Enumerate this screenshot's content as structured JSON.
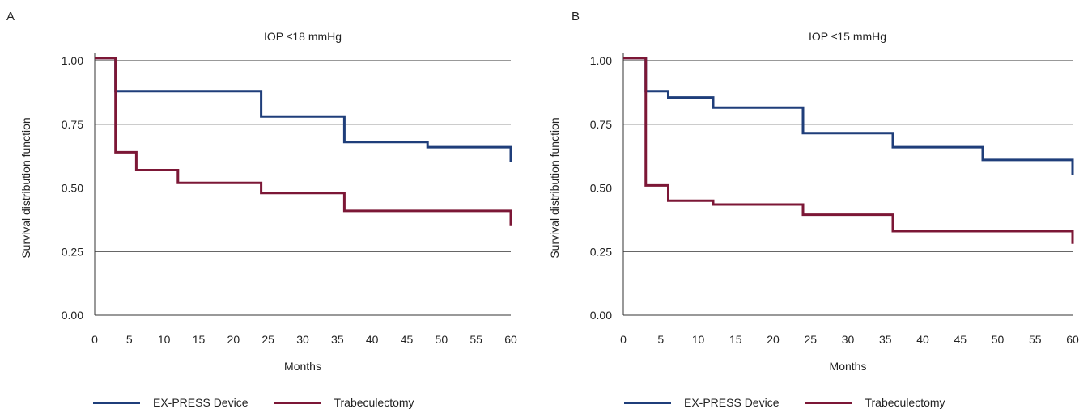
{
  "colors": {
    "express": "#1f3e7a",
    "trab": "#7c1736",
    "grid": "#333333"
  },
  "chart_data": [
    {
      "type": "line",
      "step": true,
      "panel_label": "A",
      "title": "IOP ≤18 mmHg",
      "xlabel": "Months",
      "ylabel": "Survival distribution function",
      "xlim": [
        0,
        60
      ],
      "ylim": [
        0,
        1
      ],
      "xticks": [
        "0",
        "5",
        "10",
        "15",
        "20",
        "25",
        "30",
        "35",
        "40",
        "45",
        "50",
        "55",
        "60"
      ],
      "yticks": [
        "0.00",
        "0.25",
        "0.50",
        "0.75",
        "1.00"
      ],
      "grid": "horizontal",
      "legend_position": "bottom",
      "series": [
        {
          "name": "EX-PRESS Device",
          "color": "#1f3e7a",
          "x": [
            0,
            3,
            24,
            36,
            48,
            60,
            60
          ],
          "y": [
            1.01,
            0.88,
            0.78,
            0.68,
            0.66,
            0.66,
            0.6
          ]
        },
        {
          "name": "Trabeculectomy",
          "color": "#7c1736",
          "x": [
            0,
            3,
            6,
            12,
            24,
            36,
            60,
            60
          ],
          "y": [
            1.01,
            0.64,
            0.57,
            0.52,
            0.48,
            0.41,
            0.41,
            0.35
          ]
        }
      ]
    },
    {
      "type": "line",
      "step": true,
      "panel_label": "B",
      "title": "IOP ≤15 mmHg",
      "xlabel": "Months",
      "ylabel": "Survival distribution function",
      "xlim": [
        0,
        60
      ],
      "ylim": [
        0,
        1
      ],
      "xticks": [
        "0",
        "5",
        "10",
        "15",
        "20",
        "25",
        "30",
        "35",
        "40",
        "45",
        "50",
        "55",
        "60"
      ],
      "yticks": [
        "0.00",
        "0.25",
        "0.50",
        "0.75",
        "1.00"
      ],
      "grid": "horizontal",
      "legend_position": "bottom",
      "series": [
        {
          "name": "EX-PRESS Device",
          "color": "#1f3e7a",
          "x": [
            0,
            3,
            6,
            12,
            24,
            36,
            48,
            60,
            60
          ],
          "y": [
            1.01,
            0.88,
            0.855,
            0.815,
            0.715,
            0.66,
            0.61,
            0.61,
            0.55
          ]
        },
        {
          "name": "Trabeculectomy",
          "color": "#7c1736",
          "x": [
            0,
            3,
            6,
            12,
            24,
            36,
            60,
            60
          ],
          "y": [
            1.01,
            0.51,
            0.45,
            0.435,
            0.395,
            0.33,
            0.33,
            0.28
          ]
        }
      ]
    }
  ]
}
